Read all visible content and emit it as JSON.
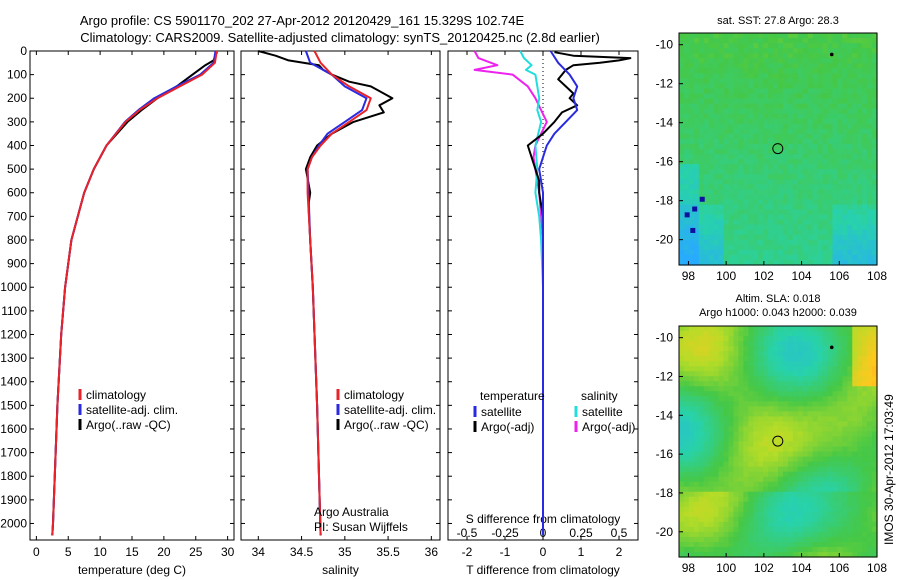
{
  "figure": {
    "title_line1": "Argo profile: CS 5901170_202 27-Apr-2012 20120429_161 15.329S 102.74E",
    "title_line2": "Climatology: CARS2009. Satellite-adjusted climatology: synTS_20120425.nc (2.8d earlier)",
    "credit": "Argo Australia",
    "pi": "PI: Susan Wijffels",
    "side_stamp": "IMOS 30-Apr-2012 17:03:49"
  },
  "colors": {
    "climatology": "#e8232a",
    "satellite": "#2a2ae0",
    "argo": "#000000",
    "sal_satellite": "#22dddd",
    "sal_argo": "#ee22ee"
  },
  "chart_data": [
    {
      "type": "line",
      "name": "temperature-profile",
      "xlabel": "temperature (deg C)",
      "xlim": [
        -1,
        31
      ],
      "xticks": [
        0,
        5,
        10,
        15,
        20,
        25,
        30
      ],
      "ylim": [
        0,
        2070
      ],
      "yticks": [
        0,
        100,
        200,
        300,
        400,
        500,
        600,
        700,
        800,
        900,
        1000,
        1100,
        1200,
        1300,
        1400,
        1500,
        1600,
        1700,
        1800,
        1900,
        2000
      ],
      "legend": [
        "climatology",
        "satellite-adj. clim.",
        "Argo(..raw -QC)"
      ],
      "legend_position": "lower-center",
      "series": [
        {
          "name": "climatology",
          "color_key": "climatology",
          "depth": [
            0,
            50,
            100,
            150,
            200,
            250,
            300,
            400,
            500,
            600,
            800,
            1000,
            1200,
            1500,
            2000,
            2050
          ],
          "values": [
            28.3,
            28.0,
            26.0,
            22.5,
            19.0,
            16.2,
            14.0,
            11.0,
            9.0,
            7.5,
            5.5,
            4.5,
            3.9,
            3.3,
            2.6,
            2.5
          ]
        },
        {
          "name": "satellite-adj. clim.",
          "color_key": "satellite",
          "depth": [
            0,
            50,
            100,
            150,
            200,
            250,
            300,
            400,
            500,
            600,
            800,
            1000,
            1200,
            1500,
            2000,
            2050
          ],
          "values": [
            28.1,
            27.8,
            25.7,
            22.0,
            18.5,
            16.0,
            13.9,
            11.0,
            9.0,
            7.5,
            5.5,
            4.5,
            3.9,
            3.3,
            2.6,
            2.5
          ]
        },
        {
          "name": "Argo(..raw -QC)",
          "color_key": "argo",
          "depth": [
            5,
            10,
            40,
            60,
            100,
            150,
            200,
            250,
            300,
            400,
            500,
            600,
            800,
            1000,
            1200,
            1500,
            2000,
            2050
          ],
          "values": [
            28.4,
            28.2,
            27.8,
            26.5,
            24.5,
            22.0,
            19.0,
            16.5,
            14.3,
            11.0,
            9.0,
            7.5,
            5.5,
            4.5,
            3.9,
            3.3,
            2.6,
            2.5
          ]
        }
      ]
    },
    {
      "type": "line",
      "name": "salinity-profile",
      "xlabel": "salinity",
      "xlim": [
        33.8,
        36.1
      ],
      "xticks": [
        34,
        34.5,
        35,
        35.5,
        36
      ],
      "ylim": [
        0,
        2070
      ],
      "legend": [
        "climatology",
        "satellite-adj. clim.",
        "Argo(..raw -QC)"
      ],
      "legend_position": "lower-right",
      "series": [
        {
          "name": "climatology",
          "color_key": "climatology",
          "depth": [
            0,
            50,
            100,
            150,
            200,
            250,
            300,
            350,
            400,
            450,
            500,
            600,
            800,
            1000,
            1500,
            2050
          ],
          "values": [
            34.65,
            34.72,
            34.85,
            35.05,
            35.3,
            35.25,
            35.05,
            34.85,
            34.72,
            34.62,
            34.57,
            34.57,
            34.6,
            34.63,
            34.68,
            34.72
          ]
        },
        {
          "name": "satellite-adj. clim.",
          "color_key": "satellite",
          "depth": [
            0,
            50,
            100,
            150,
            200,
            250,
            300,
            350,
            400,
            450,
            500,
            600,
            800,
            1000,
            1500,
            2050
          ],
          "values": [
            34.55,
            34.6,
            34.85,
            35.0,
            35.25,
            35.2,
            35.0,
            34.8,
            34.7,
            34.62,
            34.57,
            34.58,
            34.6,
            34.63,
            34.68,
            34.72
          ]
        },
        {
          "name": "Argo(..raw -QC)",
          "color_key": "argo",
          "depth": [
            0,
            20,
            40,
            60,
            80,
            100,
            130,
            150,
            180,
            200,
            230,
            260,
            300,
            350,
            400,
            450,
            500,
            600,
            650,
            800,
            1000,
            1500,
            2050
          ],
          "values": [
            34.0,
            34.2,
            34.35,
            34.7,
            34.75,
            34.85,
            35.05,
            35.3,
            35.45,
            35.55,
            35.4,
            35.45,
            35.1,
            34.85,
            34.68,
            34.6,
            34.55,
            34.6,
            34.58,
            34.6,
            34.63,
            34.68,
            34.72
          ]
        }
      ]
    },
    {
      "type": "line",
      "name": "difference-from-climatology",
      "xlabel": "T difference from climatology",
      "x2label": "S difference from climatology",
      "xlim": [
        -2.5,
        2.5
      ],
      "xticks": [
        -2,
        -1,
        0,
        1,
        2
      ],
      "x2ticks": [
        -0.5,
        -0.25,
        0,
        0.25,
        0.5
      ],
      "ylim": [
        0,
        2070
      ],
      "legend_temperature": {
        "title": "temperature",
        "items": [
          "satellite",
          "Argo(-adj)"
        ]
      },
      "legend_salinity": {
        "title": "salinity",
        "items": [
          "satellite",
          "Argo(-adj)"
        ]
      },
      "series": [
        {
          "name": "temperature satellite",
          "color_key": "satellite",
          "depth": [
            0,
            50,
            100,
            150,
            200,
            250,
            300,
            350,
            400,
            500,
            600,
            800,
            1000,
            2050
          ],
          "values": [
            0.2,
            0.4,
            0.7,
            0.9,
            0.8,
            0.9,
            0.6,
            0.3,
            0.1,
            -0.1,
            0.0,
            0.0,
            0.0,
            0.0
          ]
        },
        {
          "name": "temperature Argo(-adj)",
          "color_key": "argo",
          "depth": [
            5,
            20,
            30,
            40,
            50,
            60,
            80,
            100,
            120,
            150,
            180,
            200,
            230,
            260,
            300,
            350,
            400,
            450,
            500,
            550,
            600,
            700,
            800,
            1000,
            2050
          ],
          "values": [
            0.3,
            0.8,
            2.3,
            2.0,
            1.5,
            0.8,
            0.6,
            0.5,
            0.4,
            0.6,
            0.8,
            0.7,
            0.9,
            0.5,
            0.3,
            0.0,
            -0.4,
            -0.3,
            -0.2,
            -0.1,
            -0.1,
            0.0,
            0.0,
            0.0,
            0.0
          ]
        },
        {
          "name": "salinity satellite",
          "color_key": "sal_satellite",
          "depth": [
            0,
            30,
            60,
            80,
            100,
            150,
            200,
            250,
            300,
            400,
            500,
            600,
            700,
            800,
            1000,
            2050
          ],
          "values": [
            -0.6,
            -0.5,
            -0.3,
            -0.45,
            -0.2,
            -0.15,
            -0.1,
            -0.15,
            -0.05,
            -0.2,
            -0.15,
            -0.2,
            -0.1,
            -0.05,
            0.0,
            0.0
          ]
        },
        {
          "name": "salinity Argo(-adj)",
          "color_key": "sal_argo",
          "depth": [
            0,
            30,
            60,
            80,
            100,
            150,
            200,
            250,
            300,
            400,
            450,
            500,
            600,
            800,
            1000,
            2050
          ],
          "values": [
            -1.8,
            -1.7,
            -1.2,
            -1.8,
            -0.8,
            -0.4,
            -0.2,
            -0.05,
            0.1,
            -0.2,
            -0.25,
            -0.2,
            -0.1,
            0.0,
            0.0,
            0.0
          ]
        }
      ]
    },
    {
      "type": "heatmap",
      "name": "sst-map",
      "title": "sat. SST: 27.8 Argo: 28.3",
      "xlim": [
        97.5,
        108
      ],
      "xticks": [
        98,
        100,
        102,
        104,
        106,
        108
      ],
      "ylim": [
        -21.3,
        -9.4
      ],
      "yticks": [
        -10,
        -12,
        -14,
        -16,
        -18,
        -20
      ],
      "marker": {
        "lon": 102.74,
        "lat": -15.33
      },
      "dot": {
        "lon": 105.6,
        "lat": -10.5
      }
    },
    {
      "type": "heatmap",
      "name": "sla-map",
      "title_line1": "Altim. SLA: 0.018",
      "title_line2": "Argo h1000: 0.043 h2000: 0.039",
      "xlim": [
        97.5,
        108
      ],
      "xticks": [
        98,
        100,
        102,
        104,
        106,
        108
      ],
      "ylim": [
        -21.3,
        -9.4
      ],
      "yticks": [
        -10,
        -12,
        -14,
        -16,
        -18,
        -20
      ],
      "marker": {
        "lon": 102.74,
        "lat": -15.33
      },
      "dot": {
        "lon": 105.6,
        "lat": -10.5
      }
    }
  ]
}
